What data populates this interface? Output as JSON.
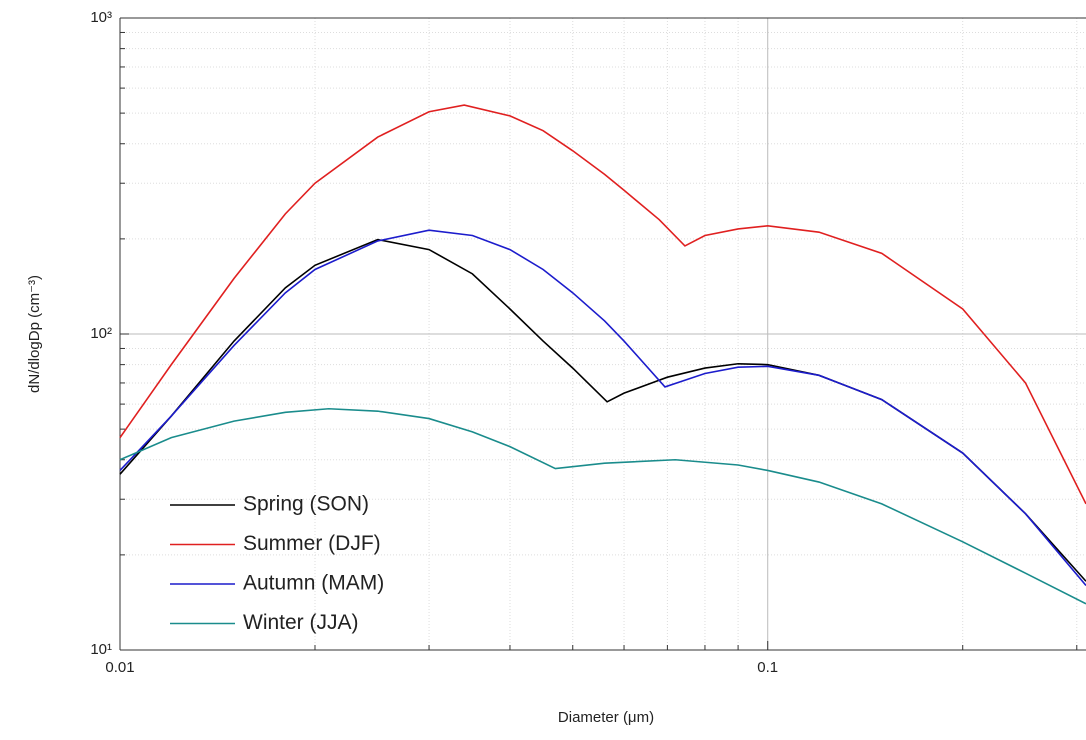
{
  "chart_data": {
    "type": "line",
    "xlabel": "Diameter (μm)",
    "ylabel": "dN/dlogDp (cm⁻³)",
    "xscale": "log",
    "yscale": "log",
    "xlim": [
      0.01,
      0.31
    ],
    "ylim": [
      10,
      1000
    ],
    "xticks": [
      0.01,
      0.1
    ],
    "yticks": [
      {
        "value": 10,
        "label": "10¹"
      },
      {
        "value": 100,
        "label": "10²"
      },
      {
        "value": 1000,
        "label": "10³"
      }
    ],
    "xminorticks": [
      0.02,
      0.03,
      0.04,
      0.05,
      0.06,
      0.07,
      0.08,
      0.09,
      0.2,
      0.3
    ],
    "yminorticks": [
      20,
      30,
      40,
      50,
      60,
      70,
      80,
      90,
      200,
      300,
      400,
      500,
      600,
      700,
      800,
      900
    ],
    "grid": true,
    "legend": "lower left",
    "series": [
      {
        "name": "Spring (SON)",
        "color": "#000000",
        "x": [
          0.01,
          0.012,
          0.015,
          0.018,
          0.02,
          0.025,
          0.03,
          0.035,
          0.04,
          0.045,
          0.05,
          0.0565,
          0.06,
          0.07,
          0.08,
          0.09,
          0.1,
          0.12,
          0.15,
          0.2,
          0.25,
          0.31
        ],
        "values": [
          36,
          55,
          95,
          140,
          165,
          199,
          185,
          155,
          120,
          95,
          78,
          61,
          65,
          73,
          78,
          80.5,
          80,
          74,
          62,
          42,
          27,
          16.5
        ]
      },
      {
        "name": "Summer (DJF)",
        "color": "#e02020",
        "x": [
          0.01,
          0.012,
          0.015,
          0.018,
          0.02,
          0.025,
          0.03,
          0.034,
          0.04,
          0.045,
          0.05,
          0.056,
          0.06,
          0.068,
          0.0745,
          0.08,
          0.09,
          0.1,
          0.12,
          0.15,
          0.2,
          0.25,
          0.31
        ],
        "values": [
          47,
          80,
          150,
          240,
          300,
          420,
          505,
          530,
          490,
          440,
          380,
          320,
          285,
          230,
          190,
          205,
          215,
          220,
          210,
          180,
          120,
          70,
          29
        ]
      },
      {
        "name": "Autumn (MAM)",
        "color": "#1c1ccc",
        "x": [
          0.01,
          0.012,
          0.015,
          0.018,
          0.02,
          0.025,
          0.03,
          0.035,
          0.04,
          0.045,
          0.05,
          0.056,
          0.06,
          0.0694,
          0.08,
          0.09,
          0.1,
          0.12,
          0.15,
          0.2,
          0.25,
          0.31
        ],
        "values": [
          37,
          55,
          92,
          135,
          160,
          197,
          213,
          205,
          185,
          160,
          135,
          110,
          95,
          68,
          75,
          78.5,
          79,
          74,
          62,
          42,
          27,
          16
        ]
      },
      {
        "name": "Winter (JJA)",
        "color": "#1a8c8c",
        "x": [
          0.01,
          0.012,
          0.015,
          0.018,
          0.021,
          0.025,
          0.03,
          0.035,
          0.04,
          0.047,
          0.056,
          0.072,
          0.09,
          0.1,
          0.12,
          0.15,
          0.2,
          0.25,
          0.31
        ],
        "values": [
          40,
          47,
          53,
          56.5,
          58,
          57,
          54,
          49,
          44,
          37.5,
          39,
          40,
          38.5,
          37,
          34,
          29,
          22,
          17.5,
          14
        ]
      }
    ]
  }
}
